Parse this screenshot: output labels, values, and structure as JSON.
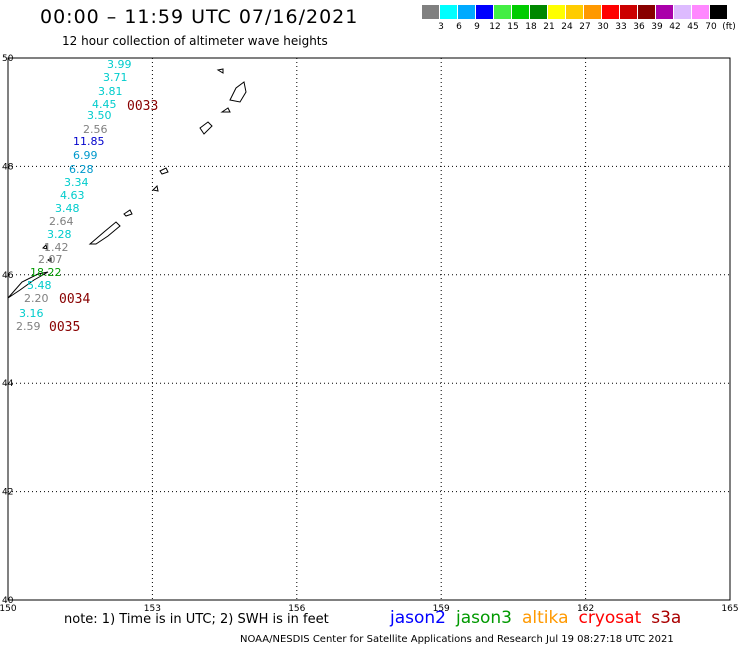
{
  "header": {
    "title": "00:00 – 11:59 UTC 07/16/2021",
    "subtitle": "12 hour collection of altimeter wave heights"
  },
  "legend": {
    "unit": "(ft)",
    "colors": [
      "#808080",
      "#00ffff",
      "#00aaff",
      "#0000ff",
      "#44ee44",
      "#00cc00",
      "#008800",
      "#ffff00",
      "#ffcc00",
      "#ff9900",
      "#ff0000",
      "#cc0000",
      "#880000",
      "#aa00aa",
      "#ddbbff",
      "#ff88ff",
      "#000000"
    ],
    "labels": [
      "3",
      "6",
      "9",
      "12",
      "15",
      "18",
      "21",
      "24",
      "27",
      "30",
      "33",
      "36",
      "39",
      "42",
      "45",
      "70"
    ]
  },
  "map": {
    "lon_ticks": [
      "150",
      "153",
      "156",
      "159",
      "162",
      "165"
    ],
    "lat_ticks": [
      "50",
      "48",
      "46",
      "44",
      "42",
      "40"
    ],
    "lon_range": [
      150,
      165
    ],
    "lat_range": [
      40,
      50
    ],
    "grid": "dotted",
    "observations": [
      {
        "value": "3.99",
        "color": "#00cccc"
      },
      {
        "value": "3.71",
        "color": "#00cccc"
      },
      {
        "value": "3.81",
        "color": "#00cccc"
      },
      {
        "value": "4.45",
        "color": "#00cccc"
      },
      {
        "value": "3.50",
        "color": "#00cccc"
      },
      {
        "value": "2.56",
        "color": "#808080"
      },
      {
        "value": "11.85",
        "color": "#0000cc"
      },
      {
        "value": "6.99",
        "color": "#0099cc"
      },
      {
        "value": "6.28",
        "color": "#0099cc"
      },
      {
        "value": "3.34",
        "color": "#00cccc"
      },
      {
        "value": "4.63",
        "color": "#00cccc"
      },
      {
        "value": "3.48",
        "color": "#00cccc"
      },
      {
        "value": "2.64",
        "color": "#808080"
      },
      {
        "value": "3.28",
        "color": "#00cccc"
      },
      {
        "value": "1.42",
        "color": "#808080"
      },
      {
        "value": "2.07",
        "color": "#808080"
      },
      {
        "value": "18.22",
        "color": "#009900"
      },
      {
        "value": "5.48",
        "color": "#00cccc"
      },
      {
        "value": "2.20",
        "color": "#808080"
      },
      {
        "value": "3.16",
        "color": "#00cccc"
      },
      {
        "value": "2.59",
        "color": "#808080"
      }
    ],
    "passes": [
      {
        "label": "0033",
        "color": "#880000"
      },
      {
        "label": "0034",
        "color": "#880000"
      },
      {
        "label": "0035",
        "color": "#880000"
      }
    ]
  },
  "footer": {
    "note": "note: 1) Time is in UTC; 2) SWH is in feet",
    "satellites": [
      {
        "name": "jason2",
        "color": "#0000ff"
      },
      {
        "name": "jason3",
        "color": "#009900"
      },
      {
        "name": "altika",
        "color": "#ff9900"
      },
      {
        "name": "cryosat",
        "color": "#ff0000"
      },
      {
        "name": "s3a",
        "color": "#aa0000"
      }
    ],
    "credit": "NOAA/NESDIS Center for Satellite Applications and Research    Jul 19 08:27:18 UTC 2021"
  }
}
